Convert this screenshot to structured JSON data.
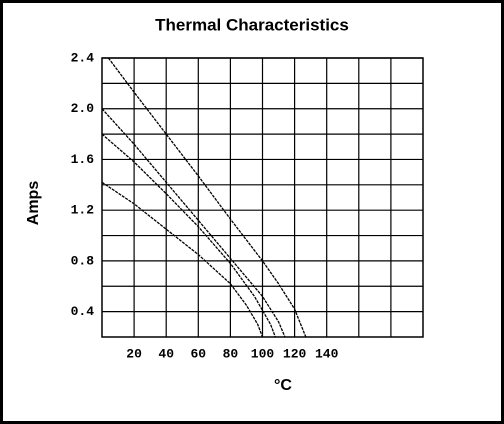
{
  "chart_data": {
    "type": "line",
    "title": "Thermal Characteristics",
    "x_label": "°C",
    "y_label": "Amps",
    "xlim": [
      0,
      200
    ],
    "xticks": [
      20,
      40,
      60,
      80,
      100,
      120,
      140
    ],
    "xminor": [
      160,
      180
    ],
    "ylim": [
      0.2,
      2.4
    ],
    "yticks": [
      {
        "value": 0.4,
        "label": "0.4"
      },
      {
        "value": 0.8,
        "label": "0.8"
      },
      {
        "value": 1.2,
        "label": "1.2"
      },
      {
        "value": 1.6,
        "label": "1.6"
      },
      {
        "value": 2,
        "label": "2.0"
      },
      {
        "value": 2.4,
        "label": "2.4"
      }
    ],
    "yminor": [
      0.6,
      1,
      1.4,
      1.8,
      2.2
    ],
    "grid": true,
    "series": [
      {
        "color": "#000000",
        "x": [
          4,
          20,
          40,
          60,
          80,
          100,
          110,
          120,
          127
        ],
        "values": [
          2.4,
          2.13,
          1.8,
          1.47,
          1.13,
          0.8,
          0.62,
          0.42,
          0.2
        ]
      },
      {
        "color": "#000000",
        "x": [
          0,
          20,
          40,
          60,
          80,
          100,
          110,
          114
        ],
        "values": [
          2.0,
          1.72,
          1.42,
          1.12,
          0.82,
          0.52,
          0.32,
          0.2
        ]
      },
      {
        "color": "#000000",
        "x": [
          0,
          20,
          40,
          60,
          80,
          95,
          105,
          108
        ],
        "values": [
          1.8,
          1.58,
          1.33,
          1.07,
          0.78,
          0.52,
          0.3,
          0.2
        ]
      },
      {
        "color": "#000000",
        "x": [
          0,
          20,
          40,
          60,
          80,
          90,
          97,
          100
        ],
        "values": [
          1.42,
          1.25,
          1.05,
          0.85,
          0.62,
          0.45,
          0.3,
          0.2
        ]
      }
    ]
  }
}
